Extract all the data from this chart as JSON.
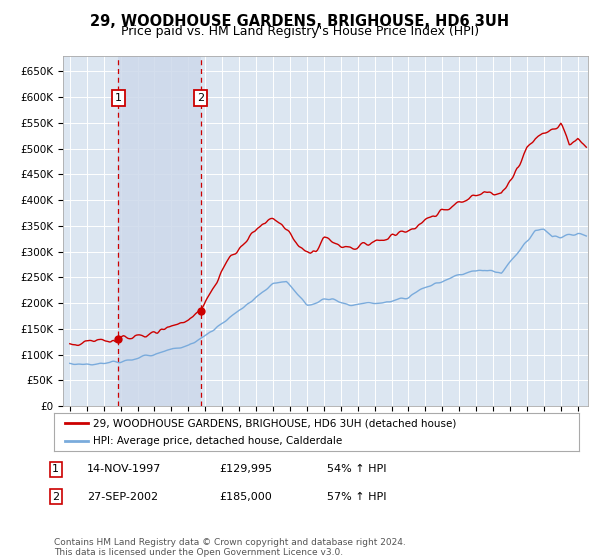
{
  "title": "29, WOODHOUSE GARDENS, BRIGHOUSE, HD6 3UH",
  "subtitle": "Price paid vs. HM Land Registry's House Price Index (HPI)",
  "ylim": [
    0,
    680000
  ],
  "yticks": [
    0,
    50000,
    100000,
    150000,
    200000,
    250000,
    300000,
    350000,
    400000,
    450000,
    500000,
    550000,
    600000,
    650000
  ],
  "xlim_start": 1994.6,
  "xlim_end": 2025.6,
  "sale1_year": 1997.87,
  "sale1_price": 129995,
  "sale2_year": 2002.73,
  "sale2_price": 185000,
  "legend_line1": "29, WOODHOUSE GARDENS, BRIGHOUSE, HD6 3UH (detached house)",
  "legend_line2": "HPI: Average price, detached house, Calderdale",
  "table_row1": [
    "1",
    "14-NOV-1997",
    "£129,995",
    "54% ↑ HPI"
  ],
  "table_row2": [
    "2",
    "27-SEP-2002",
    "£185,000",
    "57% ↑ HPI"
  ],
  "footnote": "Contains HM Land Registry data © Crown copyright and database right 2024.\nThis data is licensed under the Open Government Licence v3.0.",
  "line_color_red": "#cc0000",
  "line_color_blue": "#7aabdc",
  "background_color": "#ffffff",
  "plot_bg_color": "#dce6f1",
  "grid_color": "#ffffff",
  "vline_color": "#cc0000",
  "title_fontsize": 10.5,
  "subtitle_fontsize": 9
}
